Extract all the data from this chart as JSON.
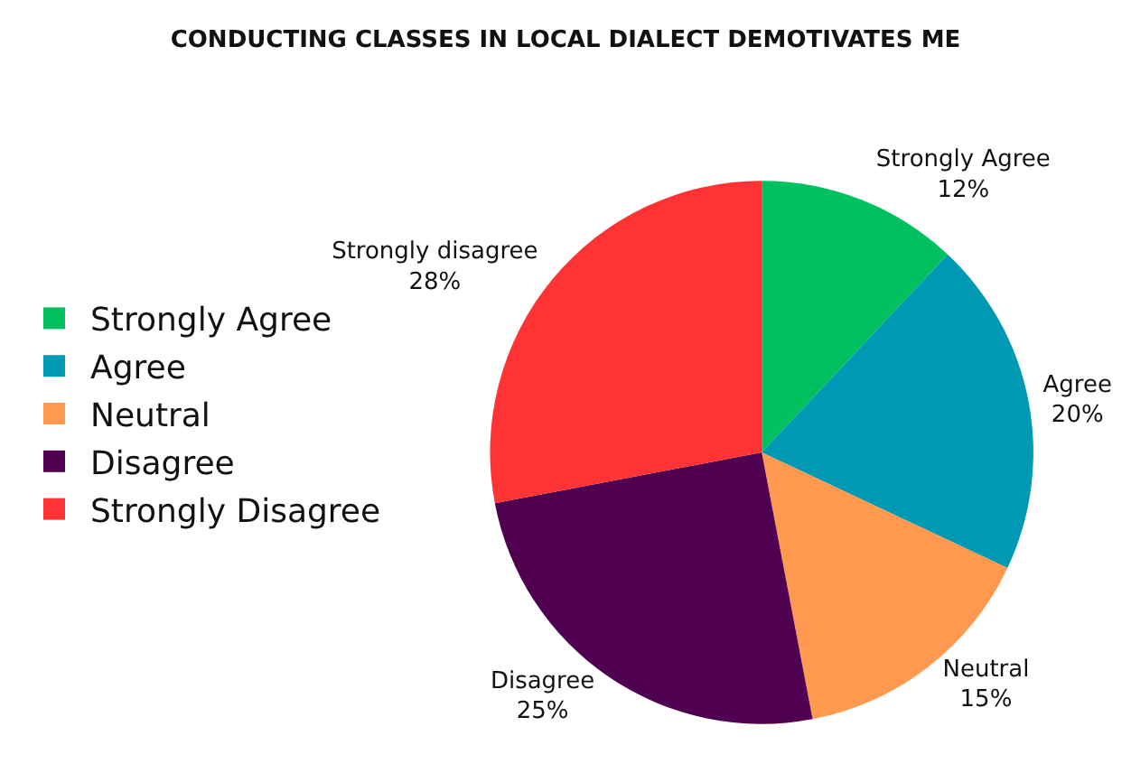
{
  "chart_data": {
    "type": "pie",
    "title": "CONDUCTING CLASSES IN LOCAL DIALECT DEMOTIVATES ME",
    "categories": [
      "Strongly Agree",
      "Agree",
      "Neutral",
      "Disagree",
      "Strongly Disagree"
    ],
    "values": [
      12,
      20,
      15,
      25,
      28
    ],
    "colors": [
      "#00c060",
      "#0099b4",
      "#ff9950",
      "#4f0050",
      "#ff3333"
    ],
    "value_labels": [
      "Strongly Agree\n12%",
      "Agree\n20%",
      "Neutral\n15%",
      "Disagree\n25%",
      "Strongly disagree\n28%"
    ],
    "legend": "left"
  }
}
